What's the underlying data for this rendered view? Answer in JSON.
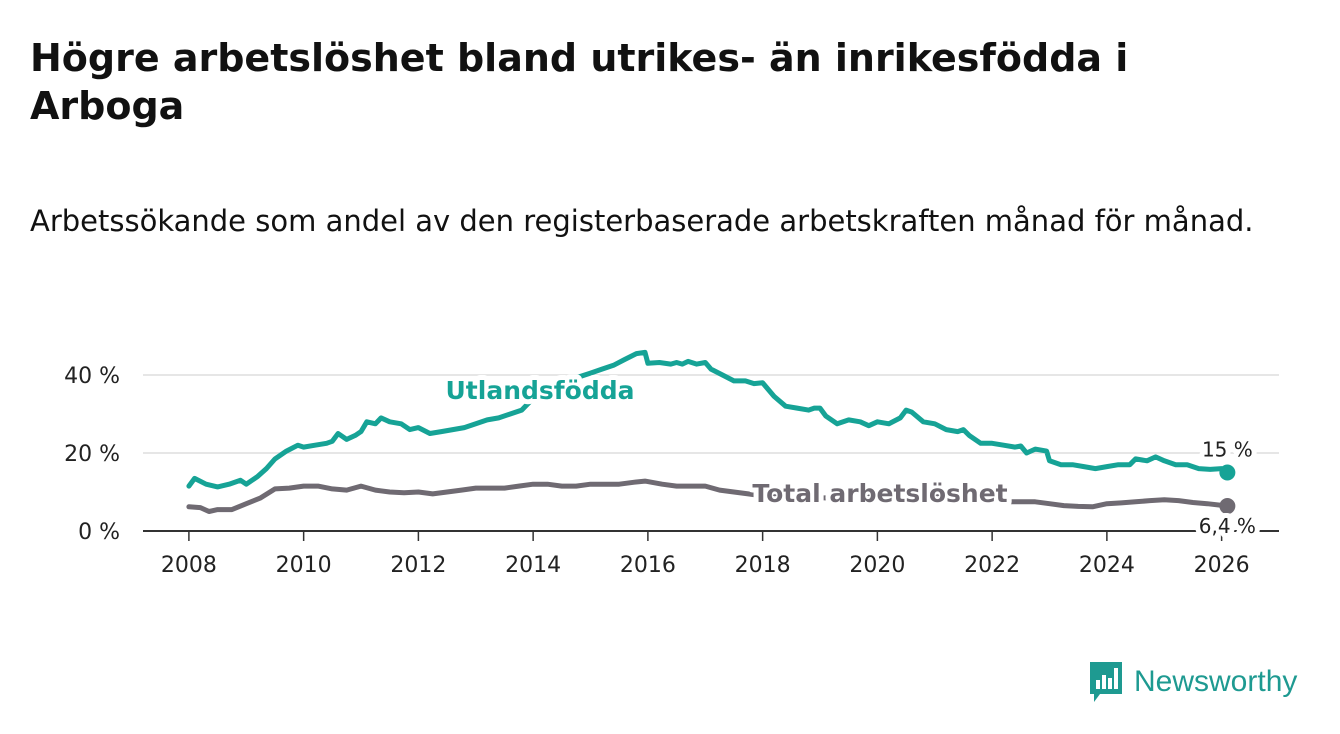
{
  "title": "Högre arbetslöshet bland utrikes- än inrikesfödda i Arboga",
  "subtitle": "Arbetssökande som andel av den registerbaserade arbetskraften månad för månad.",
  "brand": {
    "name": "Newsworthy",
    "icon": "newsworthy-bar-chart-icon"
  },
  "colors": {
    "foreign": "#16a396",
    "total": "#6f6a72",
    "grid": "#dddddd",
    "axis": "#333333",
    "brand": "#1e9a91"
  },
  "chart_data": {
    "type": "line",
    "title": "Högre arbetslöshet bland utrikes- än inrikesfödda i Arboga",
    "xlabel": "",
    "ylabel": "",
    "xlim": [
      2007.2,
      2027.0
    ],
    "ylim": [
      0,
      40
    ],
    "y_ticks": [
      0,
      20,
      40
    ],
    "y_tick_labels": [
      "0 %",
      "20 %",
      "40 %"
    ],
    "x_ticks": [
      2008,
      2010,
      2012,
      2014,
      2016,
      2018,
      2020,
      2022,
      2024,
      2026
    ],
    "x_tick_labels": [
      "2008",
      "2010",
      "2012",
      "2014",
      "2016",
      "2018",
      "2020",
      "2022",
      "2024",
      "2026"
    ],
    "grid": true,
    "series": [
      {
        "name": "Utlandsfödda",
        "label": "Utlandsfödda",
        "color": "#16a396",
        "end_label": "15 %",
        "points": [
          [
            2008.0,
            11.5
          ],
          [
            2008.1,
            13.5
          ],
          [
            2008.3,
            12.0
          ],
          [
            2008.5,
            11.3
          ],
          [
            2008.7,
            12.0
          ],
          [
            2008.9,
            13.0
          ],
          [
            2009.0,
            12.0
          ],
          [
            2009.2,
            14.0
          ],
          [
            2009.35,
            16.0
          ],
          [
            2009.5,
            18.5
          ],
          [
            2009.7,
            20.5
          ],
          [
            2009.9,
            22.0
          ],
          [
            2010.0,
            21.5
          ],
          [
            2010.2,
            22.0
          ],
          [
            2010.4,
            22.5
          ],
          [
            2010.5,
            23.0
          ],
          [
            2010.6,
            25.0
          ],
          [
            2010.75,
            23.5
          ],
          [
            2010.9,
            24.5
          ],
          [
            2011.0,
            25.5
          ],
          [
            2011.1,
            28.0
          ],
          [
            2011.25,
            27.5
          ],
          [
            2011.35,
            29.0
          ],
          [
            2011.5,
            28.0
          ],
          [
            2011.7,
            27.5
          ],
          [
            2011.85,
            26.0
          ],
          [
            2012.0,
            26.5
          ],
          [
            2012.2,
            25.0
          ],
          [
            2012.4,
            25.5
          ],
          [
            2012.6,
            26.0
          ],
          [
            2012.8,
            26.5
          ],
          [
            2013.0,
            27.5
          ],
          [
            2013.2,
            28.5
          ],
          [
            2013.4,
            29.0
          ],
          [
            2013.6,
            30.0
          ],
          [
            2013.8,
            31.0
          ],
          [
            2014.0,
            34.0
          ],
          [
            2014.2,
            36.0
          ],
          [
            2014.4,
            37.5
          ],
          [
            2014.6,
            38.5
          ],
          [
            2014.8,
            39.5
          ],
          [
            2015.0,
            40.5
          ],
          [
            2015.2,
            41.5
          ],
          [
            2015.4,
            42.5
          ],
          [
            2015.6,
            44.0
          ],
          [
            2015.8,
            45.5
          ],
          [
            2015.95,
            45.8
          ],
          [
            2016.0,
            43.0
          ],
          [
            2016.2,
            43.2
          ],
          [
            2016.4,
            42.8
          ],
          [
            2016.5,
            43.2
          ],
          [
            2016.6,
            42.8
          ],
          [
            2016.7,
            43.5
          ],
          [
            2016.85,
            42.8
          ],
          [
            2017.0,
            43.2
          ],
          [
            2017.1,
            41.5
          ],
          [
            2017.3,
            40.0
          ],
          [
            2017.5,
            38.5
          ],
          [
            2017.7,
            38.5
          ],
          [
            2017.85,
            37.8
          ],
          [
            2018.0,
            38.0
          ],
          [
            2018.2,
            34.5
          ],
          [
            2018.4,
            32.0
          ],
          [
            2018.6,
            31.5
          ],
          [
            2018.8,
            31.0
          ],
          [
            2018.9,
            31.5
          ],
          [
            2019.0,
            31.5
          ],
          [
            2019.1,
            29.5
          ],
          [
            2019.3,
            27.5
          ],
          [
            2019.5,
            28.5
          ],
          [
            2019.7,
            28.0
          ],
          [
            2019.85,
            27.0
          ],
          [
            2020.0,
            28.0
          ],
          [
            2020.2,
            27.5
          ],
          [
            2020.4,
            29.0
          ],
          [
            2020.5,
            31.0
          ],
          [
            2020.6,
            30.5
          ],
          [
            2020.8,
            28.0
          ],
          [
            2021.0,
            27.5
          ],
          [
            2021.2,
            26.0
          ],
          [
            2021.4,
            25.5
          ],
          [
            2021.5,
            26.0
          ],
          [
            2021.6,
            24.5
          ],
          [
            2021.8,
            22.5
          ],
          [
            2022.0,
            22.5
          ],
          [
            2022.2,
            22.0
          ],
          [
            2022.4,
            21.5
          ],
          [
            2022.5,
            21.8
          ],
          [
            2022.6,
            20.0
          ],
          [
            2022.75,
            21.0
          ],
          [
            2022.95,
            20.5
          ],
          [
            2023.0,
            18.0
          ],
          [
            2023.2,
            17.0
          ],
          [
            2023.4,
            17.0
          ],
          [
            2023.6,
            16.5
          ],
          [
            2023.8,
            16.0
          ],
          [
            2024.0,
            16.5
          ],
          [
            2024.2,
            17.0
          ],
          [
            2024.4,
            17.0
          ],
          [
            2024.5,
            18.5
          ],
          [
            2024.7,
            18.0
          ],
          [
            2024.85,
            19.0
          ],
          [
            2025.0,
            18.0
          ],
          [
            2025.2,
            17.0
          ],
          [
            2025.4,
            17.0
          ],
          [
            2025.6,
            16.0
          ],
          [
            2025.8,
            15.8
          ],
          [
            2026.0,
            16.0
          ],
          [
            2026.1,
            15.0
          ]
        ]
      },
      {
        "name": "Total arbetslöshet",
        "label": "Total arbetslöshet",
        "color": "#6f6a72",
        "end_label": "6,4 %",
        "points": [
          [
            2008.0,
            6.2
          ],
          [
            2008.2,
            6.0
          ],
          [
            2008.35,
            5.0
          ],
          [
            2008.5,
            5.5
          ],
          [
            2008.75,
            5.5
          ],
          [
            2009.0,
            7.0
          ],
          [
            2009.25,
            8.5
          ],
          [
            2009.5,
            10.8
          ],
          [
            2009.75,
            11.0
          ],
          [
            2010.0,
            11.5
          ],
          [
            2010.25,
            11.5
          ],
          [
            2010.5,
            10.8
          ],
          [
            2010.75,
            10.5
          ],
          [
            2011.0,
            11.5
          ],
          [
            2011.25,
            10.5
          ],
          [
            2011.5,
            10.0
          ],
          [
            2011.75,
            9.8
          ],
          [
            2012.0,
            10.0
          ],
          [
            2012.25,
            9.5
          ],
          [
            2012.5,
            10.0
          ],
          [
            2012.75,
            10.5
          ],
          [
            2013.0,
            11.0
          ],
          [
            2013.25,
            11.0
          ],
          [
            2013.5,
            11.0
          ],
          [
            2013.75,
            11.5
          ],
          [
            2014.0,
            12.0
          ],
          [
            2014.25,
            12.0
          ],
          [
            2014.5,
            11.5
          ],
          [
            2014.75,
            11.5
          ],
          [
            2015.0,
            12.0
          ],
          [
            2015.25,
            12.0
          ],
          [
            2015.5,
            12.0
          ],
          [
            2015.75,
            12.5
          ],
          [
            2015.95,
            12.8
          ],
          [
            2016.25,
            12.0
          ],
          [
            2016.5,
            11.5
          ],
          [
            2016.75,
            11.5
          ],
          [
            2017.0,
            11.5
          ],
          [
            2017.25,
            10.5
          ],
          [
            2017.5,
            10.0
          ],
          [
            2017.75,
            9.5
          ],
          [
            2018.0,
            9.0
          ],
          [
            2018.25,
            9.0
          ],
          [
            2018.5,
            9.0
          ],
          [
            2018.75,
            8.5
          ],
          [
            2019.0,
            8.5
          ],
          [
            2019.25,
            8.5
          ],
          [
            2019.5,
            8.0
          ],
          [
            2019.75,
            8.5
          ],
          [
            2020.0,
            9.0
          ],
          [
            2020.25,
            9.5
          ],
          [
            2020.5,
            10.0
          ],
          [
            2020.75,
            9.0
          ],
          [
            2021.0,
            9.0
          ],
          [
            2021.25,
            8.5
          ],
          [
            2021.5,
            8.0
          ],
          [
            2021.75,
            7.8
          ],
          [
            2022.0,
            7.5
          ],
          [
            2022.25,
            7.5
          ],
          [
            2022.5,
            7.5
          ],
          [
            2022.75,
            7.5
          ],
          [
            2023.0,
            7.0
          ],
          [
            2023.25,
            6.5
          ],
          [
            2023.5,
            6.3
          ],
          [
            2023.75,
            6.2
          ],
          [
            2024.0,
            7.0
          ],
          [
            2024.25,
            7.2
          ],
          [
            2024.5,
            7.5
          ],
          [
            2024.75,
            7.8
          ],
          [
            2025.0,
            8.0
          ],
          [
            2025.25,
            7.8
          ],
          [
            2025.5,
            7.3
          ],
          [
            2025.75,
            7.0
          ],
          [
            2026.1,
            6.4
          ]
        ]
      }
    ]
  }
}
